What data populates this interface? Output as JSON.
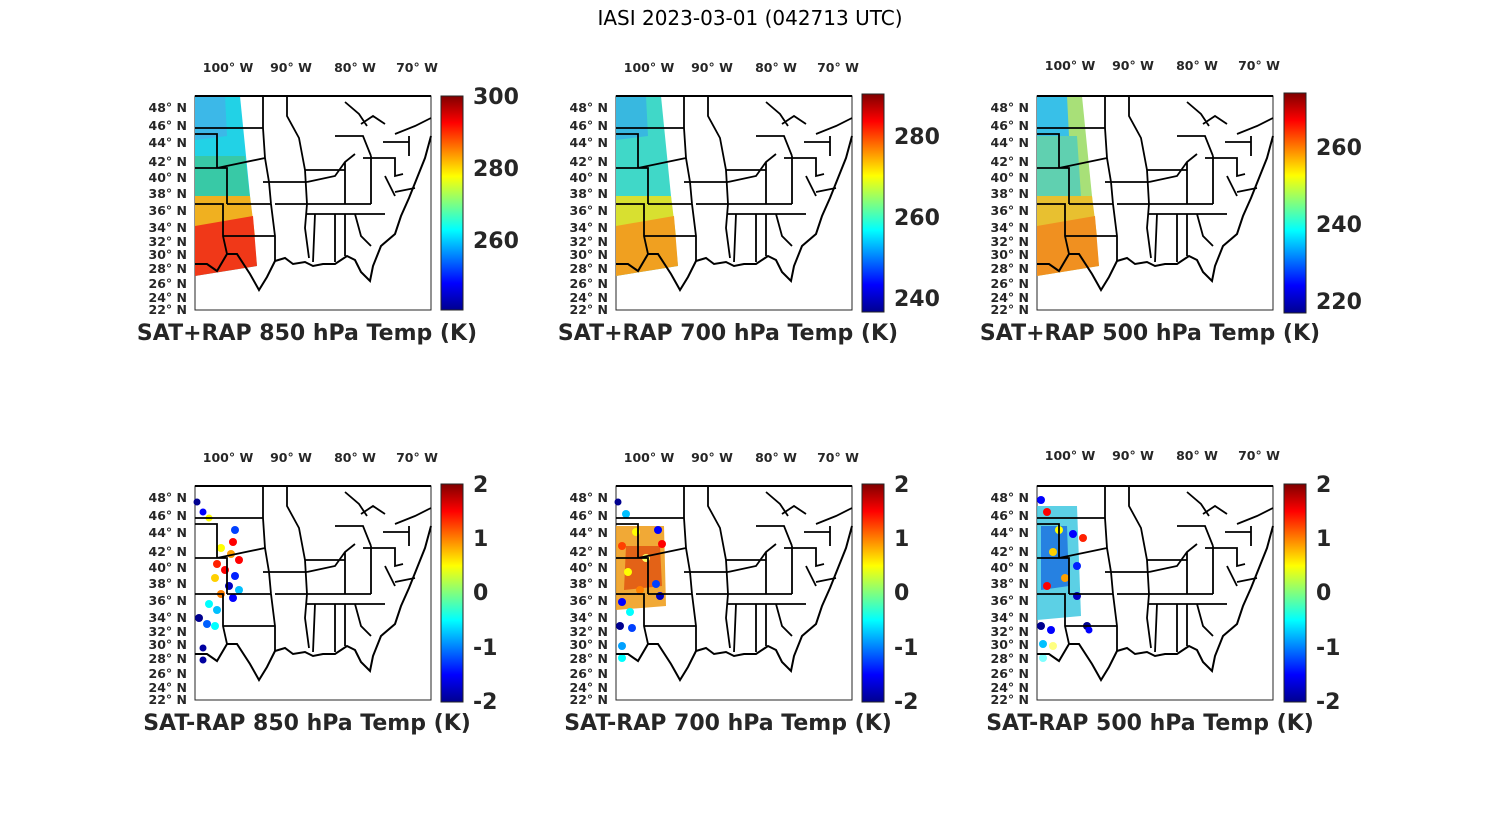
{
  "figure": {
    "title": "IASI 2023-03-01 (042713 UTC)"
  },
  "axes": {
    "lon_tick_labels": [
      "100° W",
      "90° W",
      "80° W",
      "70° W"
    ],
    "lat_tick_labels": [
      "48° N",
      "46° N",
      "44° N",
      "42° N",
      "40° N",
      "38° N",
      "36° N",
      "34° N",
      "32° N",
      "30° N",
      "28° N",
      "26° N",
      "24° N",
      "22° N"
    ]
  },
  "chart_data": [
    {
      "type": "map",
      "title": "SAT+RAP 850 hPa Temp (K)",
      "colorbar": {
        "range": [
          242,
          302
        ],
        "ticks": [
          "300",
          "280",
          "260"
        ]
      }
    },
    {
      "type": "map",
      "title": "SAT+RAP 700 hPa Temp (K)",
      "colorbar": {
        "range": [
          236,
          290
        ],
        "ticks": [
          "280",
          "260",
          "240"
        ]
      }
    },
    {
      "type": "map",
      "title": "SAT+RAP 500 hPa Temp (K)",
      "colorbar": {
        "range": [
          216,
          274
        ],
        "ticks": [
          "260",
          "240",
          "220"
        ]
      }
    },
    {
      "type": "map",
      "title": "SAT-RAP 850 hPa Temp (K)",
      "colorbar": {
        "range": [
          -2,
          2
        ],
        "ticks": [
          "2",
          "1",
          "0",
          "-1",
          "-2"
        ]
      }
    },
    {
      "type": "map",
      "title": "SAT-RAP 700 hPa Temp (K)",
      "colorbar": {
        "range": [
          -2,
          2
        ],
        "ticks": [
          "2",
          "1",
          "0",
          "-1",
          "-2"
        ]
      }
    },
    {
      "type": "map",
      "title": "SAT-RAP 500 hPa Temp (K)",
      "colorbar": {
        "range": [
          -2,
          2
        ],
        "ticks": [
          "2",
          "1",
          "0",
          "-1",
          "-2"
        ]
      }
    }
  ]
}
